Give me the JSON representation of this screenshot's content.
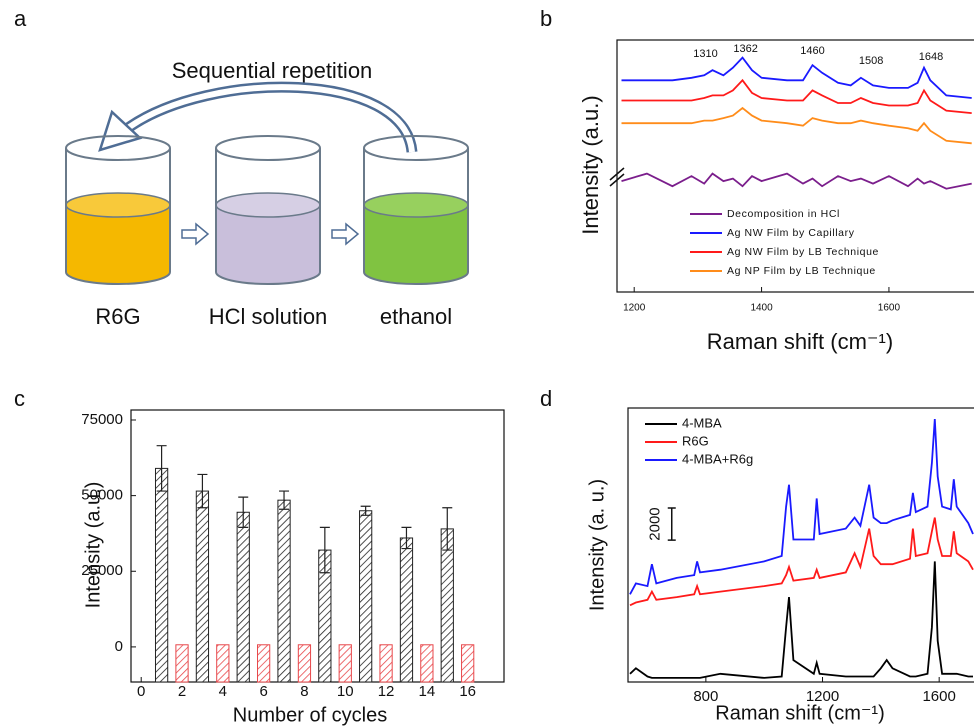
{
  "diagram": {
    "label": "a",
    "title": "Sequential repetition",
    "steps": [
      "R6G",
      "HCl solution",
      "ethanol"
    ]
  },
  "chart_data": [
    {
      "label": "b",
      "type": "line",
      "x_label": "Raman shift (cm⁻¹)",
      "y_label": "Intensity (a.u.)",
      "xlim": [
        1173,
        1732
      ],
      "ylim": [
        0,
        100
      ],
      "xticks": [
        1200,
        1400,
        1600
      ],
      "legend": "lower-left",
      "x": [
        1180,
        1220,
        1260,
        1290,
        1310,
        1323,
        1340,
        1355,
        1370,
        1385,
        1400,
        1440,
        1465,
        1480,
        1495,
        1520,
        1540,
        1556,
        1575,
        1600,
        1630,
        1645,
        1655,
        1665,
        1690,
        1730
      ],
      "series": [
        {
          "name": "Decomposition in HCl",
          "color": "#7b1e8c",
          "values": [
            44,
            47,
            42,
            46,
            43,
            47,
            44,
            45,
            42,
            46,
            44,
            47,
            43,
            45,
            42,
            46,
            44,
            45,
            43,
            46,
            42,
            45,
            43,
            44,
            41,
            43
          ]
        },
        {
          "name": "Ag NW Film by Capillary",
          "color": "#1a1aff",
          "values": [
            84,
            84,
            84,
            85,
            86,
            88,
            86,
            89,
            93,
            88,
            85,
            84,
            84,
            90,
            87,
            83,
            82,
            85,
            82,
            81,
            81,
            83,
            89,
            84,
            78,
            77
          ]
        },
        {
          "name": "Ag NW Film by LB Technique",
          "color": "#ff1a1a",
          "values": [
            76,
            76,
            76,
            76,
            77,
            78,
            78,
            80,
            84,
            79,
            77,
            76,
            76,
            80,
            78,
            75,
            75,
            77,
            75,
            74,
            74,
            75,
            80,
            76,
            72,
            71
          ]
        },
        {
          "name": "Ag NP Film by LB Technique",
          "color": "#ff8c1a",
          "values": [
            67,
            67,
            67,
            67,
            68,
            68,
            69,
            70,
            73,
            70,
            68,
            67,
            66,
            69,
            68,
            67,
            67,
            68,
            67,
            66,
            65,
            64,
            67,
            64,
            60,
            59
          ]
        }
      ],
      "annotations": [
        {
          "text": "1310",
          "x": 1312,
          "y": 94.4
        },
        {
          "text": "1362",
          "x": 1375,
          "y": 96.4
        },
        {
          "text": "1460",
          "x": 1480,
          "y": 95.6
        },
        {
          "text": "1508",
          "x": 1572,
          "y": 91.7
        },
        {
          "text": "1648",
          "x": 1666,
          "y": 93.3
        }
      ]
    },
    {
      "label": "c",
      "type": "bar",
      "x_label": "Number of cycles",
      "y_label": "Intensity (a.u.)",
      "xlim": [
        -0.5,
        16.8
      ],
      "ylim": [
        -11600,
        78300
      ],
      "xticks": [
        0,
        2,
        4,
        6,
        8,
        10,
        12,
        14,
        16
      ],
      "yticks": [
        0,
        25000,
        50000,
        75000
      ],
      "series": [
        {
          "color": "#222222",
          "x": [
            1,
            3,
            5,
            7,
            9,
            11,
            13,
            15
          ],
          "values": [
            59000,
            51500,
            44500,
            48500,
            32000,
            45000,
            36000,
            39000
          ],
          "errors": [
            7500,
            5500,
            5000,
            3000,
            7500,
            1500,
            3500,
            7000
          ]
        },
        {
          "color": "#e8474a",
          "x": [
            2,
            4,
            6,
            8,
            10,
            12,
            14,
            16
          ],
          "values": [
            700,
            700,
            700,
            700,
            700,
            700,
            700,
            700
          ]
        }
      ]
    },
    {
      "label": "d",
      "type": "line",
      "x_label": "Raman shift (cm⁻¹)",
      "y_label": "Intensity (a. u.)",
      "xlim": [
        533,
        1716
      ],
      "ylim": [
        0,
        100
      ],
      "xticks": [
        800,
        1200,
        1600
      ],
      "legend": "upper-left",
      "x": [
        540,
        560,
        600,
        615,
        630,
        700,
        760,
        770,
        780,
        850,
        1000,
        1060,
        1075,
        1085,
        1100,
        1170,
        1180,
        1190,
        1280,
        1310,
        1330,
        1360,
        1375,
        1400,
        1420,
        1440,
        1500,
        1510,
        1520,
        1560,
        1575,
        1585,
        1595,
        1610,
        1640,
        1650,
        1660,
        1700,
        1716
      ],
      "series": [
        {
          "name": "4-MBA",
          "color": "#000000",
          "values": [
            3,
            5,
            2,
            1.5,
            1.5,
            1.5,
            1.5,
            1.5,
            1.5,
            3,
            1.5,
            2,
            20,
            31,
            8,
            3,
            7,
            3,
            2,
            2,
            2,
            2,
            2,
            5,
            8,
            5,
            2,
            2,
            2,
            3,
            20,
            44,
            15,
            3,
            3,
            3,
            3,
            2,
            2
          ]
        },
        {
          "name": "R6G",
          "color": "#ff1a1a",
          "values": [
            28,
            29,
            30,
            33,
            30,
            31,
            32,
            35,
            32,
            33,
            35,
            36,
            39,
            42,
            37,
            38,
            41,
            38,
            40,
            47,
            42,
            56,
            46,
            43,
            43,
            43,
            45,
            56,
            46,
            47,
            55,
            60,
            52,
            46,
            46,
            55,
            47,
            44,
            41
          ]
        },
        {
          "name": "4-MBA+R6g",
          "color": "#1a1aff",
          "values": [
            32,
            36,
            35,
            43,
            36,
            38,
            39,
            44,
            40,
            41,
            44,
            46,
            64,
            72,
            52,
            52,
            67,
            54,
            56,
            60,
            57,
            72,
            60,
            58,
            58,
            59,
            61,
            69,
            62,
            64,
            80,
            96,
            75,
            64,
            63,
            74,
            64,
            58,
            54
          ]
        }
      ],
      "scale_bar": {
        "label": "2000",
        "x": 683,
        "y": [
          51.8,
          63.5
        ]
      }
    }
  ]
}
